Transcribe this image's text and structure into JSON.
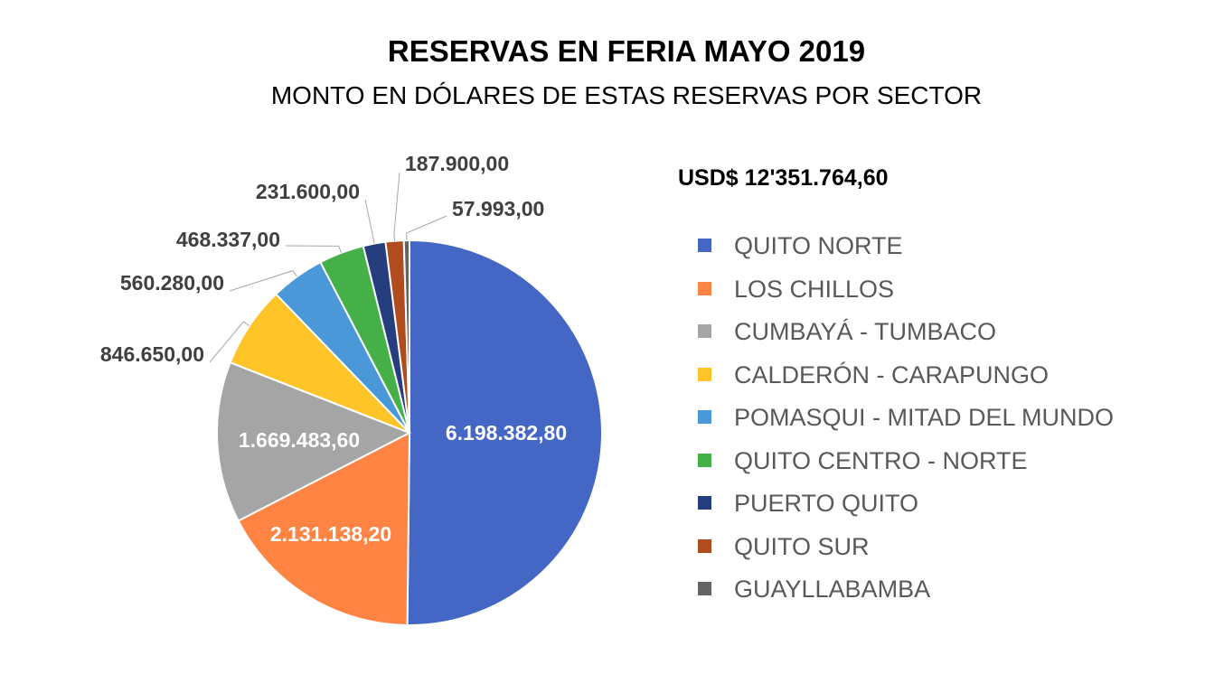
{
  "chart_data": {
    "type": "pie",
    "title": "RESERVAS EN FERIA MAYO 2019",
    "subtitle": "MONTO EN DÓLARES DE ESTAS RESERVAS POR SECTOR",
    "total_label": "USD$ 12'351.764,60",
    "legend_position": "right",
    "slices": [
      {
        "name": "QUITO NORTE",
        "value": 6198382.8,
        "label": "6.198.382,80",
        "color": "#4466C4"
      },
      {
        "name": "LOS CHILLOS",
        "value": 2131138.2,
        "label": "2.131.138,20",
        "color": "#FF8443"
      },
      {
        "name": "CUMBAYÁ - TUMBACO",
        "value": 1669483.6,
        "label": "1.669.483,60",
        "color": "#A5A5A5"
      },
      {
        "name": "CALDERÓN - CARAPUNGO",
        "value": 846650.0,
        "label": "846.650,00",
        "color": "#FFC428"
      },
      {
        "name": "POMASQUI - MITAD DEL MUNDO",
        "value": 560280.0,
        "label": "560.280,00",
        "color": "#4A98D8"
      },
      {
        "name": "QUITO CENTRO - NORTE",
        "value": 468337.0,
        "label": "468.337,00",
        "color": "#45B048"
      },
      {
        "name": "PUERTO QUITO",
        "value": 231600.0,
        "label": "231.600,00",
        "color": "#263D7E"
      },
      {
        "name": "QUITO SUR",
        "value": 187900.0,
        "label": "187.900,00",
        "color": "#B04C1E"
      },
      {
        "name": "GUAYLLABAMBA",
        "value": 57993.0,
        "label": "57.993,00",
        "color": "#646464"
      }
    ]
  }
}
